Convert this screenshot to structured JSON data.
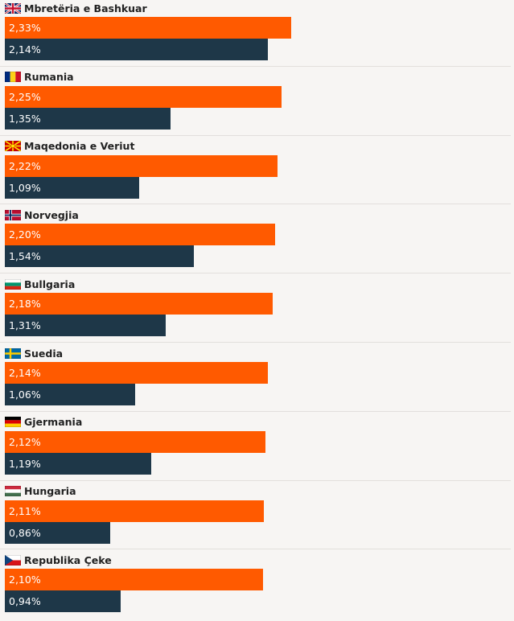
{
  "chart_data": {
    "type": "bar",
    "orientation": "horizontal",
    "categories": [
      "Mbretëria e Bashkuar",
      "Rumania",
      "Maqedonia e Veriut",
      "Norvegjia",
      "Bullgaria",
      "Suedia",
      "Gjermania",
      "Hungaria",
      "Republika Çeke"
    ],
    "flags": [
      "uk",
      "romania",
      "north-macedonia",
      "norway",
      "bulgaria",
      "sweden",
      "germany",
      "hungary",
      "czechia"
    ],
    "series": [
      {
        "color": "#ff5a00",
        "values": [
          2.33,
          2.25,
          2.22,
          2.2,
          2.18,
          2.14,
          2.12,
          2.11,
          2.1
        ],
        "labels": [
          "2,33%",
          "2,25%",
          "2,22%",
          "2,20%",
          "2,18%",
          "2,14%",
          "2,12%",
          "2,11%",
          "2,10%"
        ]
      },
      {
        "color": "#1e3748",
        "values": [
          2.14,
          1.35,
          1.09,
          1.54,
          1.31,
          1.06,
          1.19,
          0.86,
          0.94
        ],
        "labels": [
          "2,14%",
          "1,35%",
          "1,09%",
          "1,54%",
          "1,31%",
          "1,06%",
          "1,19%",
          "0,86%",
          "0,94%"
        ]
      }
    ],
    "xlim": [
      0,
      2.33
    ],
    "grid": false,
    "legend": "none"
  },
  "colors": {
    "background": "#f7f5f3",
    "divider": "#e2dfdc",
    "text": "#222222"
  }
}
